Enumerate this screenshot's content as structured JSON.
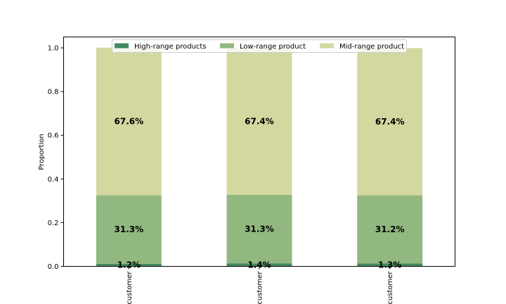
{
  "chart_data": {
    "type": "bar",
    "stacked": true,
    "categories": [
      "customer",
      "customer",
      "customer"
    ],
    "series": [
      {
        "name": "High-range products",
        "color": "#438a5e",
        "values": [
          0.012,
          0.014,
          0.013
        ],
        "labels": [
          "1.2%",
          "1.4%",
          "1.3%"
        ]
      },
      {
        "name": "Low-range product",
        "color": "#91b87f",
        "values": [
          0.313,
          0.313,
          0.312
        ],
        "labels": [
          "31.3%",
          "31.3%",
          "31.2%"
        ]
      },
      {
        "name": "Mid-range product",
        "color": "#d3d8a0",
        "values": [
          0.676,
          0.674,
          0.674
        ],
        "labels": [
          "67.6%",
          "67.4%",
          "67.4%"
        ]
      }
    ],
    "ylabel": "Proportion",
    "ylim": [
      0,
      1.05
    ],
    "yticks": [
      "0.0",
      "0.2",
      "0.4",
      "0.6",
      "0.8",
      "1.0"
    ],
    "grid": false,
    "legend_position": "top-center"
  }
}
